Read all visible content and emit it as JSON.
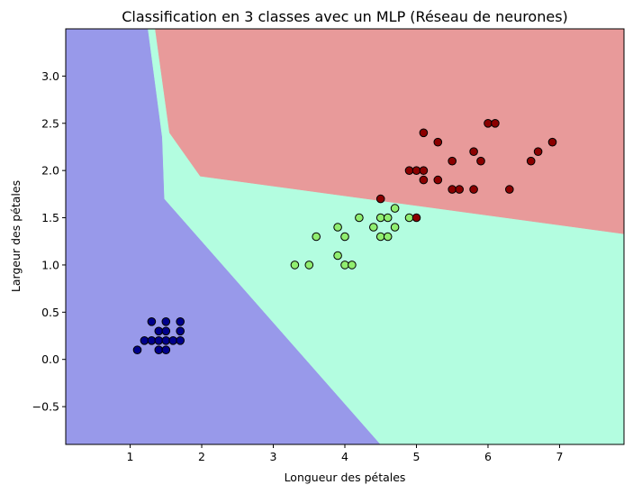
{
  "chart_data": {
    "type": "scatter",
    "title": "Classification en 3 classes avec un MLP (Réseau de neurones)",
    "xlabel": "Longueur des pétales",
    "ylabel": "Largeur des pétales",
    "xlim": [
      0.1,
      7.9
    ],
    "ylim": [
      -0.9,
      3.5
    ],
    "xticks": [
      1,
      2,
      3,
      4,
      5,
      6,
      7
    ],
    "yticks": [
      -0.5,
      0.0,
      0.5,
      1.0,
      1.5,
      2.0,
      2.5,
      3.0
    ],
    "xtick_labels": [
      "1",
      "2",
      "3",
      "4",
      "5",
      "6",
      "7"
    ],
    "ytick_labels": [
      "−0.5",
      "0.0",
      "0.5",
      "1.0",
      "1.5",
      "2.0",
      "2.5",
      "3.0"
    ],
    "grid": false,
    "regions": [
      {
        "color": "#9899ea",
        "polygon": [
          [
            0.1,
            3.5
          ],
          [
            1.25,
            3.5
          ],
          [
            1.45,
            2.35
          ],
          [
            1.48,
            1.7
          ],
          [
            4.5,
            -0.9
          ],
          [
            0.1,
            -0.9
          ]
        ]
      },
      {
        "color": "#b3fde0",
        "polygon": [
          [
            1.25,
            3.5
          ],
          [
            1.35,
            3.5
          ],
          [
            1.55,
            2.4
          ],
          [
            1.98,
            1.94
          ],
          [
            7.9,
            1.33
          ],
          [
            7.9,
            -0.9
          ],
          [
            4.5,
            -0.9
          ],
          [
            1.48,
            1.7
          ],
          [
            1.45,
            2.35
          ]
        ]
      },
      {
        "color": "#e89a9a",
        "polygon": [
          [
            1.35,
            3.5
          ],
          [
            7.9,
            3.5
          ],
          [
            7.9,
            1.33
          ],
          [
            1.98,
            1.94
          ],
          [
            1.55,
            2.4
          ]
        ]
      }
    ],
    "series": [
      {
        "color": "#00008b",
        "points": [
          [
            1.1,
            0.1
          ],
          [
            1.2,
            0.2
          ],
          [
            1.3,
            0.2
          ],
          [
            1.3,
            0.4
          ],
          [
            1.4,
            0.1
          ],
          [
            1.4,
            0.2
          ],
          [
            1.4,
            0.3
          ],
          [
            1.5,
            0.1
          ],
          [
            1.5,
            0.2
          ],
          [
            1.5,
            0.3
          ],
          [
            1.5,
            0.4
          ],
          [
            1.6,
            0.2
          ],
          [
            1.7,
            0.2
          ],
          [
            1.7,
            0.3
          ],
          [
            1.7,
            0.4
          ]
        ]
      },
      {
        "color": "#90ee70",
        "points": [
          [
            3.3,
            1.0
          ],
          [
            3.5,
            1.0
          ],
          [
            3.6,
            1.3
          ],
          [
            3.9,
            1.1
          ],
          [
            3.9,
            1.4
          ],
          [
            4.0,
            1.0
          ],
          [
            4.0,
            1.3
          ],
          [
            4.1,
            1.0
          ],
          [
            4.2,
            1.5
          ],
          [
            4.4,
            1.4
          ],
          [
            4.5,
            1.5
          ],
          [
            4.5,
            1.3
          ],
          [
            4.6,
            1.3
          ],
          [
            4.6,
            1.5
          ],
          [
            4.7,
            1.4
          ],
          [
            4.7,
            1.6
          ],
          [
            4.9,
            1.5
          ]
        ]
      },
      {
        "color": "#8b0000",
        "points": [
          [
            4.5,
            1.7
          ],
          [
            5.0,
            1.5
          ],
          [
            4.9,
            2.0
          ],
          [
            5.0,
            2.0
          ],
          [
            5.1,
            2.0
          ],
          [
            5.1,
            1.9
          ],
          [
            5.1,
            2.4
          ],
          [
            5.3,
            1.9
          ],
          [
            5.3,
            2.3
          ],
          [
            5.5,
            1.8
          ],
          [
            5.5,
            2.1
          ],
          [
            5.6,
            1.8
          ],
          [
            5.8,
            1.8
          ],
          [
            5.8,
            2.2
          ],
          [
            5.9,
            2.1
          ],
          [
            6.0,
            2.5
          ],
          [
            6.1,
            2.5
          ],
          [
            6.3,
            1.8
          ],
          [
            6.6,
            2.1
          ],
          [
            6.7,
            2.2
          ],
          [
            6.9,
            2.3
          ]
        ]
      }
    ]
  }
}
